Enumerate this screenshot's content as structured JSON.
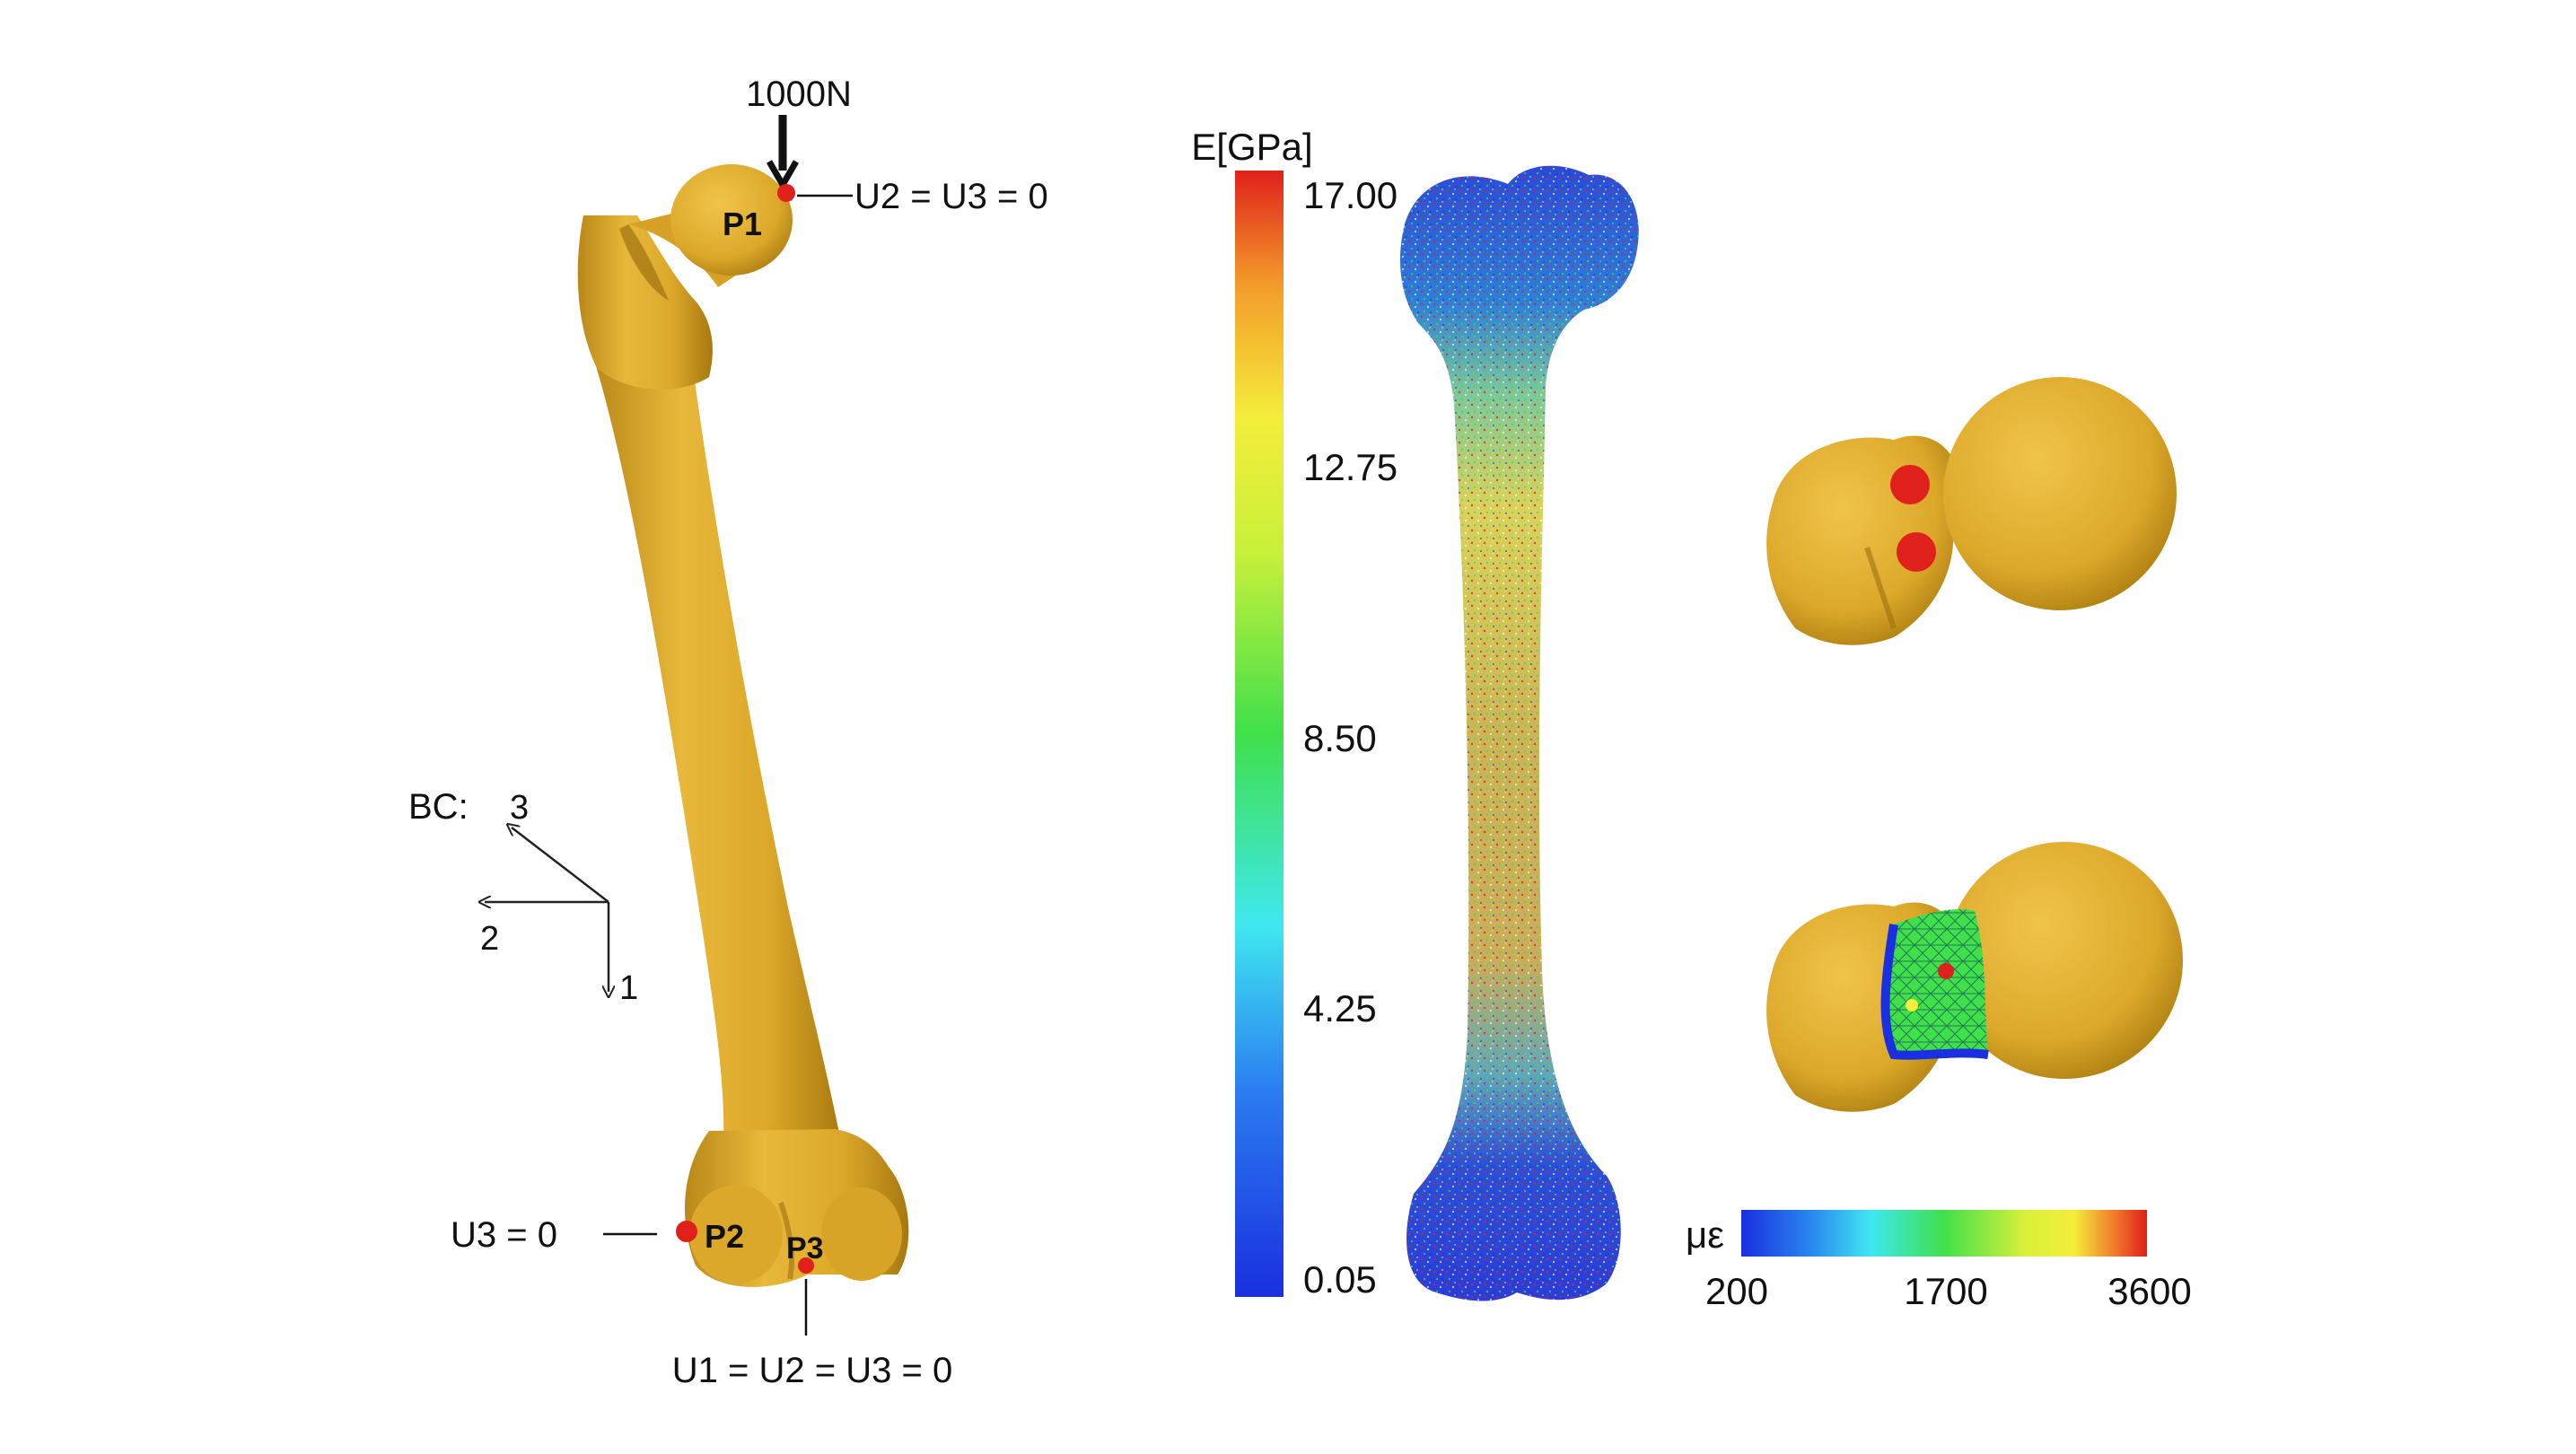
{
  "figure": {
    "left_panel": {
      "load_label": "1000N",
      "points": {
        "p1": "P1",
        "p2": "P2",
        "p3": "P3"
      },
      "constraints": {
        "p1": "U2 = U3 = 0",
        "p2": "U3 = 0",
        "p3": "U1 = U2 = U3 = 0"
      },
      "coord_system": {
        "prefix": "BC:",
        "axis_3": "3",
        "axis_2": "2",
        "axis_1": "1"
      }
    },
    "modulus_colorbar": {
      "title": "E[GPa]",
      "ticks": [
        "17.00",
        "12.75",
        "8.50",
        "4.25",
        "0.05"
      ]
    },
    "strain_colorbar": {
      "unit": "με",
      "ticks": [
        "200",
        "1700",
        "3600"
      ]
    },
    "colors": {
      "bone": "#E0AC2E",
      "bone_dark": "#B98818",
      "marker": "#E0201B",
      "jet_low": "#1A2FE0",
      "jet_high": "#E0201B"
    }
  }
}
